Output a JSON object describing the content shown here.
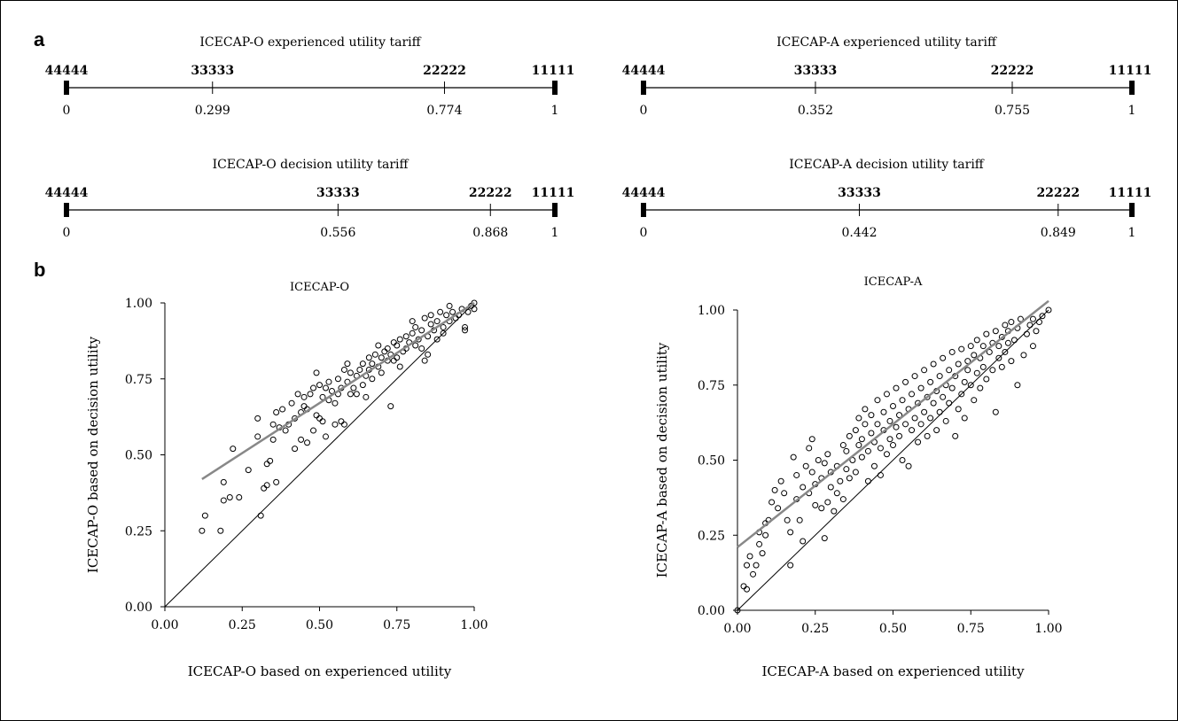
{
  "panel_labels": {
    "a": "a",
    "b": "b"
  },
  "tariffs": [
    {
      "title": "ICECAP-O  experienced utility tariff",
      "states": [
        {
          "label": "44444",
          "value": 0,
          "value_text": "0"
        },
        {
          "label": "33333",
          "value": 0.299,
          "value_text": "0.299"
        },
        {
          "label": "22222",
          "value": 0.774,
          "value_text": "0.774"
        },
        {
          "label": "11111",
          "value": 1,
          "value_text": "1"
        }
      ]
    },
    {
      "title": "ICECAP-A  experienced utility tariff",
      "states": [
        {
          "label": "44444",
          "value": 0,
          "value_text": "0"
        },
        {
          "label": "33333",
          "value": 0.352,
          "value_text": "0.352"
        },
        {
          "label": "22222",
          "value": 0.755,
          "value_text": "0.755"
        },
        {
          "label": "11111",
          "value": 1,
          "value_text": "1"
        }
      ]
    },
    {
      "title": "ICECAP-O  decision utility tariff",
      "states": [
        {
          "label": "44444",
          "value": 0,
          "value_text": "0"
        },
        {
          "label": "33333",
          "value": 0.556,
          "value_text": "0.556"
        },
        {
          "label": "22222",
          "value": 0.868,
          "value_text": "0.868"
        },
        {
          "label": "11111",
          "value": 1,
          "value_text": "1"
        }
      ]
    },
    {
      "title": "ICECAP-A  decision utility tariff",
      "states": [
        {
          "label": "44444",
          "value": 0,
          "value_text": "0"
        },
        {
          "label": "33333",
          "value": 0.442,
          "value_text": "0.442"
        },
        {
          "label": "22222",
          "value": 0.849,
          "value_text": "0.849"
        },
        {
          "label": "11111",
          "value": 1,
          "value_text": "1"
        }
      ]
    }
  ],
  "chart_data": [
    {
      "type": "scatter",
      "title": "ICECAP-O",
      "xlabel": "ICECAP-O based on experienced utility",
      "ylabel": "ICECAP-O based on decision utility",
      "xlim": [
        0,
        1
      ],
      "ylim": [
        0,
        1
      ],
      "xticks": [
        "0.00",
        "0.25",
        "0.50",
        "0.75",
        "1.00"
      ],
      "yticks": [
        "0.00",
        "0.25",
        "0.50",
        "0.75",
        "1.00"
      ],
      "grid": false,
      "marker_color": "#000000",
      "reference_line": {
        "name": "identity",
        "points": [
          [
            0,
            0
          ],
          [
            1,
            1
          ]
        ],
        "color": "#000000"
      },
      "fit_line": {
        "points": [
          [
            0.12,
            0.42
          ],
          [
            1.0,
            1.0
          ]
        ],
        "color": "#888888"
      },
      "points": [
        [
          0.12,
          0.25
        ],
        [
          0.13,
          0.3
        ],
        [
          0.18,
          0.25
        ],
        [
          0.19,
          0.35
        ],
        [
          0.19,
          0.41
        ],
        [
          0.21,
          0.36
        ],
        [
          0.22,
          0.52
        ],
        [
          0.24,
          0.36
        ],
        [
          0.27,
          0.45
        ],
        [
          0.3,
          0.56
        ],
        [
          0.3,
          0.62
        ],
        [
          0.31,
          0.3
        ],
        [
          0.32,
          0.39
        ],
        [
          0.33,
          0.4
        ],
        [
          0.33,
          0.47
        ],
        [
          0.34,
          0.48
        ],
        [
          0.35,
          0.55
        ],
        [
          0.35,
          0.6
        ],
        [
          0.36,
          0.41
        ],
        [
          0.36,
          0.64
        ],
        [
          0.37,
          0.59
        ],
        [
          0.38,
          0.65
        ],
        [
          0.39,
          0.58
        ],
        [
          0.4,
          0.6
        ],
        [
          0.41,
          0.67
        ],
        [
          0.42,
          0.52
        ],
        [
          0.42,
          0.62
        ],
        [
          0.43,
          0.7
        ],
        [
          0.44,
          0.55
        ],
        [
          0.44,
          0.64
        ],
        [
          0.45,
          0.66
        ],
        [
          0.45,
          0.69
        ],
        [
          0.46,
          0.54
        ],
        [
          0.46,
          0.65
        ],
        [
          0.47,
          0.7
        ],
        [
          0.48,
          0.58
        ],
        [
          0.48,
          0.72
        ],
        [
          0.49,
          0.63
        ],
        [
          0.49,
          0.77
        ],
        [
          0.5,
          0.62
        ],
        [
          0.5,
          0.73
        ],
        [
          0.51,
          0.61
        ],
        [
          0.51,
          0.69
        ],
        [
          0.52,
          0.56
        ],
        [
          0.52,
          0.72
        ],
        [
          0.53,
          0.68
        ],
        [
          0.53,
          0.74
        ],
        [
          0.54,
          0.71
        ],
        [
          0.55,
          0.67
        ],
        [
          0.55,
          0.6
        ],
        [
          0.56,
          0.7
        ],
        [
          0.56,
          0.75
        ],
        [
          0.57,
          0.61
        ],
        [
          0.57,
          0.72
        ],
        [
          0.58,
          0.78
        ],
        [
          0.58,
          0.6
        ],
        [
          0.59,
          0.74
        ],
        [
          0.59,
          0.8
        ],
        [
          0.6,
          0.7
        ],
        [
          0.6,
          0.77
        ],
        [
          0.61,
          0.72
        ],
        [
          0.62,
          0.76
        ],
        [
          0.62,
          0.7
        ],
        [
          0.63,
          0.78
        ],
        [
          0.64,
          0.8
        ],
        [
          0.64,
          0.73
        ],
        [
          0.65,
          0.69
        ],
        [
          0.65,
          0.76
        ],
        [
          0.66,
          0.82
        ],
        [
          0.66,
          0.78
        ],
        [
          0.67,
          0.75
        ],
        [
          0.67,
          0.8
        ],
        [
          0.68,
          0.83
        ],
        [
          0.69,
          0.79
        ],
        [
          0.69,
          0.86
        ],
        [
          0.7,
          0.82
        ],
        [
          0.7,
          0.77
        ],
        [
          0.71,
          0.84
        ],
        [
          0.72,
          0.81
        ],
        [
          0.72,
          0.85
        ],
        [
          0.73,
          0.66
        ],
        [
          0.73,
          0.83
        ],
        [
          0.74,
          0.81
        ],
        [
          0.74,
          0.87
        ],
        [
          0.75,
          0.82
        ],
        [
          0.75,
          0.86
        ],
        [
          0.76,
          0.79
        ],
        [
          0.76,
          0.88
        ],
        [
          0.77,
          0.84
        ],
        [
          0.78,
          0.89
        ],
        [
          0.78,
          0.85
        ],
        [
          0.79,
          0.87
        ],
        [
          0.8,
          0.94
        ],
        [
          0.8,
          0.9
        ],
        [
          0.81,
          0.86
        ],
        [
          0.81,
          0.92
        ],
        [
          0.82,
          0.88
        ],
        [
          0.83,
          0.85
        ],
        [
          0.83,
          0.91
        ],
        [
          0.84,
          0.81
        ],
        [
          0.84,
          0.95
        ],
        [
          0.85,
          0.83
        ],
        [
          0.85,
          0.89
        ],
        [
          0.86,
          0.93
        ],
        [
          0.86,
          0.96
        ],
        [
          0.87,
          0.91
        ],
        [
          0.88,
          0.94
        ],
        [
          0.88,
          0.88
        ],
        [
          0.89,
          0.97
        ],
        [
          0.9,
          0.92
        ],
        [
          0.9,
          0.9
        ],
        [
          0.91,
          0.96
        ],
        [
          0.92,
          0.99
        ],
        [
          0.92,
          0.94
        ],
        [
          0.93,
          0.97
        ],
        [
          0.94,
          0.95
        ],
        [
          0.95,
          0.96
        ],
        [
          0.96,
          0.98
        ],
        [
          0.97,
          0.92
        ],
        [
          0.97,
          0.91
        ],
        [
          0.98,
          0.97
        ],
        [
          0.99,
          0.99
        ],
        [
          1.0,
          0.98
        ],
        [
          1.0,
          1.0
        ]
      ]
    },
    {
      "type": "scatter",
      "title": "ICECAP-A",
      "xlabel": "ICECAP-A based on experienced utility",
      "ylabel": "ICECAP-A based on decision utility",
      "xlim": [
        0,
        1
      ],
      "ylim": [
        0,
        1
      ],
      "xticks": [
        "0.00",
        "0.25",
        "0.50",
        "0.75",
        "1.00"
      ],
      "yticks": [
        "0.00",
        "0.25",
        "0.50",
        "0.75",
        "1.00"
      ],
      "grid": false,
      "marker_color": "#000000",
      "reference_line": {
        "name": "identity",
        "points": [
          [
            0,
            0
          ],
          [
            1,
            1
          ]
        ],
        "color": "#000000"
      },
      "fit_line": {
        "points": [
          [
            0.0,
            0.21
          ],
          [
            1.0,
            1.03
          ]
        ],
        "color": "#888888"
      },
      "points": [
        [
          0.0,
          0.0
        ],
        [
          0.02,
          0.08
        ],
        [
          0.03,
          0.15
        ],
        [
          0.03,
          0.07
        ],
        [
          0.04,
          0.18
        ],
        [
          0.05,
          0.12
        ],
        [
          0.06,
          0.15
        ],
        [
          0.07,
          0.22
        ],
        [
          0.07,
          0.26
        ],
        [
          0.08,
          0.19
        ],
        [
          0.09,
          0.29
        ],
        [
          0.09,
          0.25
        ],
        [
          0.1,
          0.3
        ],
        [
          0.11,
          0.36
        ],
        [
          0.12,
          0.4
        ],
        [
          0.13,
          0.34
        ],
        [
          0.14,
          0.43
        ],
        [
          0.15,
          0.39
        ],
        [
          0.16,
          0.3
        ],
        [
          0.17,
          0.15
        ],
        [
          0.17,
          0.26
        ],
        [
          0.18,
          0.51
        ],
        [
          0.19,
          0.37
        ],
        [
          0.19,
          0.45
        ],
        [
          0.2,
          0.3
        ],
        [
          0.21,
          0.41
        ],
        [
          0.21,
          0.23
        ],
        [
          0.22,
          0.48
        ],
        [
          0.23,
          0.54
        ],
        [
          0.23,
          0.39
        ],
        [
          0.24,
          0.57
        ],
        [
          0.24,
          0.46
        ],
        [
          0.25,
          0.35
        ],
        [
          0.25,
          0.42
        ],
        [
          0.26,
          0.5
        ],
        [
          0.27,
          0.34
        ],
        [
          0.27,
          0.44
        ],
        [
          0.28,
          0.24
        ],
        [
          0.28,
          0.49
        ],
        [
          0.29,
          0.52
        ],
        [
          0.29,
          0.36
        ],
        [
          0.3,
          0.41
        ],
        [
          0.3,
          0.46
        ],
        [
          0.31,
          0.33
        ],
        [
          0.32,
          0.39
        ],
        [
          0.32,
          0.48
        ],
        [
          0.33,
          0.43
        ],
        [
          0.34,
          0.55
        ],
        [
          0.34,
          0.37
        ],
        [
          0.35,
          0.47
        ],
        [
          0.35,
          0.53
        ],
        [
          0.36,
          0.44
        ],
        [
          0.36,
          0.58
        ],
        [
          0.37,
          0.5
        ],
        [
          0.38,
          0.6
        ],
        [
          0.38,
          0.46
        ],
        [
          0.39,
          0.55
        ],
        [
          0.39,
          0.64
        ],
        [
          0.4,
          0.51
        ],
        [
          0.4,
          0.57
        ],
        [
          0.41,
          0.62
        ],
        [
          0.41,
          0.67
        ],
        [
          0.42,
          0.43
        ],
        [
          0.42,
          0.53
        ],
        [
          0.43,
          0.59
        ],
        [
          0.43,
          0.65
        ],
        [
          0.44,
          0.48
        ],
        [
          0.44,
          0.56
        ],
        [
          0.45,
          0.62
        ],
        [
          0.45,
          0.7
        ],
        [
          0.46,
          0.45
        ],
        [
          0.46,
          0.54
        ],
        [
          0.47,
          0.6
        ],
        [
          0.47,
          0.66
        ],
        [
          0.48,
          0.52
        ],
        [
          0.48,
          0.72
        ],
        [
          0.49,
          0.57
        ],
        [
          0.49,
          0.63
        ],
        [
          0.5,
          0.68
        ],
        [
          0.5,
          0.55
        ],
        [
          0.51,
          0.61
        ],
        [
          0.51,
          0.74
        ],
        [
          0.52,
          0.58
        ],
        [
          0.52,
          0.65
        ],
        [
          0.53,
          0.7
        ],
        [
          0.53,
          0.5
        ],
        [
          0.54,
          0.62
        ],
        [
          0.54,
          0.76
        ],
        [
          0.55,
          0.67
        ],
        [
          0.55,
          0.48
        ],
        [
          0.56,
          0.72
        ],
        [
          0.56,
          0.6
        ],
        [
          0.57,
          0.64
        ],
        [
          0.57,
          0.78
        ],
        [
          0.58,
          0.69
        ],
        [
          0.58,
          0.56
        ],
        [
          0.59,
          0.74
        ],
        [
          0.59,
          0.62
        ],
        [
          0.6,
          0.8
        ],
        [
          0.6,
          0.66
        ],
        [
          0.61,
          0.71
        ],
        [
          0.61,
          0.58
        ],
        [
          0.62,
          0.76
        ],
        [
          0.62,
          0.64
        ],
        [
          0.63,
          0.82
        ],
        [
          0.63,
          0.69
        ],
        [
          0.64,
          0.73
        ],
        [
          0.64,
          0.6
        ],
        [
          0.65,
          0.78
        ],
        [
          0.65,
          0.66
        ],
        [
          0.66,
          0.84
        ],
        [
          0.66,
          0.71
        ],
        [
          0.67,
          0.75
        ],
        [
          0.67,
          0.63
        ],
        [
          0.68,
          0.8
        ],
        [
          0.68,
          0.69
        ],
        [
          0.69,
          0.86
        ],
        [
          0.69,
          0.74
        ],
        [
          0.7,
          0.58
        ],
        [
          0.7,
          0.78
        ],
        [
          0.71,
          0.82
        ],
        [
          0.71,
          0.67
        ],
        [
          0.72,
          0.87
        ],
        [
          0.72,
          0.72
        ],
        [
          0.73,
          0.76
        ],
        [
          0.73,
          0.64
        ],
        [
          0.74,
          0.83
        ],
        [
          0.74,
          0.8
        ],
        [
          0.75,
          0.88
        ],
        [
          0.75,
          0.75
        ],
        [
          0.76,
          0.85
        ],
        [
          0.76,
          0.7
        ],
        [
          0.77,
          0.9
        ],
        [
          0.77,
          0.79
        ],
        [
          0.78,
          0.84
        ],
        [
          0.78,
          0.74
        ],
        [
          0.79,
          0.88
        ],
        [
          0.79,
          0.81
        ],
        [
          0.8,
          0.92
        ],
        [
          0.8,
          0.77
        ],
        [
          0.81,
          0.86
        ],
        [
          0.82,
          0.89
        ],
        [
          0.82,
          0.8
        ],
        [
          0.83,
          0.66
        ],
        [
          0.83,
          0.93
        ],
        [
          0.84,
          0.84
        ],
        [
          0.84,
          0.88
        ],
        [
          0.85,
          0.91
        ],
        [
          0.85,
          0.81
        ],
        [
          0.86,
          0.95
        ],
        [
          0.86,
          0.86
        ],
        [
          0.87,
          0.89
        ],
        [
          0.87,
          0.93
        ],
        [
          0.88,
          0.83
        ],
        [
          0.88,
          0.96
        ],
        [
          0.89,
          0.9
        ],
        [
          0.9,
          0.94
        ],
        [
          0.9,
          0.75
        ],
        [
          0.91,
          0.97
        ],
        [
          0.92,
          0.85
        ],
        [
          0.93,
          0.92
        ],
        [
          0.94,
          0.95
        ],
        [
          0.95,
          0.88
        ],
        [
          0.95,
          0.97
        ],
        [
          0.96,
          0.93
        ],
        [
          0.97,
          0.96
        ],
        [
          0.98,
          0.98
        ],
        [
          1.0,
          1.0
        ]
      ]
    }
  ]
}
